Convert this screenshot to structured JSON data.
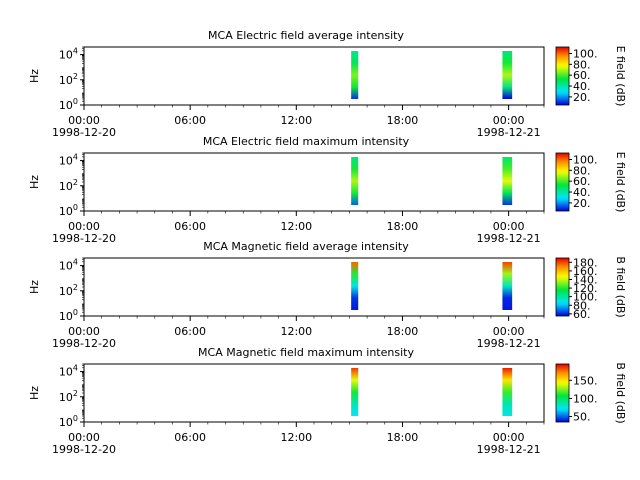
{
  "chart_data": [
    {
      "type": "heatmap",
      "title": "MCA  Electric field average intensity",
      "ylabel": "Hz",
      "y_scale": "log",
      "y_ticks": [
        {
          "base": "10",
          "exp": "0"
        },
        {
          "base": "10",
          "exp": "2"
        },
        {
          "base": "10",
          "exp": "4"
        }
      ],
      "ylim": [
        1,
        40000
      ],
      "xlim": [
        0,
        26
      ],
      "x_ticks": [
        {
          "hour": 0,
          "label": "00:00",
          "date": "1998-12-20"
        },
        {
          "hour": 6,
          "label": "06:00",
          "date": ""
        },
        {
          "hour": 12,
          "label": "12:00",
          "date": ""
        },
        {
          "hour": 18,
          "label": "18:00",
          "date": ""
        },
        {
          "hour": 24,
          "label": "00:00",
          "date": "1998-12-21"
        }
      ],
      "colorbar_label": "E field (dB)",
      "colorbar_ticks": [
        "20.",
        "40.",
        "60.",
        "80.",
        "100."
      ],
      "colorbar_range": [
        5,
        112
      ],
      "data_blocks": [
        {
          "x_start": 15.1,
          "x_end": 15.5,
          "profile": [
            10,
            55,
            65,
            50,
            42
          ]
        },
        {
          "x_start": 23.65,
          "x_end": 24.2,
          "profile": [
            5,
            45,
            70,
            55,
            45
          ]
        }
      ]
    },
    {
      "type": "heatmap",
      "title": "MCA  Electric field maximum intensity",
      "ylabel": "Hz",
      "y_scale": "log",
      "y_ticks": [
        {
          "base": "10",
          "exp": "0"
        },
        {
          "base": "10",
          "exp": "2"
        },
        {
          "base": "10",
          "exp": "4"
        }
      ],
      "ylim": [
        1,
        40000
      ],
      "xlim": [
        0,
        26
      ],
      "x_ticks": [
        {
          "hour": 0,
          "label": "00:00",
          "date": "1998-12-20"
        },
        {
          "hour": 6,
          "label": "06:00",
          "date": ""
        },
        {
          "hour": 12,
          "label": "12:00",
          "date": ""
        },
        {
          "hour": 18,
          "label": "18:00",
          "date": ""
        },
        {
          "hour": 24,
          "label": "00:00",
          "date": "1998-12-21"
        }
      ],
      "colorbar_label": "E field (dB)",
      "colorbar_ticks": [
        "20.",
        "40.",
        "60.",
        "80.",
        "100."
      ],
      "colorbar_range": [
        5,
        112
      ],
      "data_blocks": [
        {
          "x_start": 15.1,
          "x_end": 15.5,
          "profile": [
            15,
            55,
            70,
            55,
            45
          ]
        },
        {
          "x_start": 23.65,
          "x_end": 24.2,
          "profile": [
            10,
            50,
            75,
            60,
            48
          ]
        }
      ]
    },
    {
      "type": "heatmap",
      "title": "MCA  Magnetic field average intensity",
      "ylabel": "Hz",
      "y_scale": "log",
      "y_ticks": [
        {
          "base": "10",
          "exp": "0"
        },
        {
          "base": "10",
          "exp": "2"
        },
        {
          "base": "10",
          "exp": "4"
        }
      ],
      "ylim": [
        1,
        40000
      ],
      "xlim": [
        0,
        26
      ],
      "x_ticks": [
        {
          "hour": 0,
          "label": "00:00",
          "date": "1998-12-20"
        },
        {
          "hour": 6,
          "label": "06:00",
          "date": ""
        },
        {
          "hour": 12,
          "label": "12:00",
          "date": ""
        },
        {
          "hour": 18,
          "label": "18:00",
          "date": ""
        },
        {
          "hour": 24,
          "label": "00:00",
          "date": "1998-12-21"
        }
      ],
      "colorbar_label": "B field (dB)",
      "colorbar_ticks": [
        "60.",
        "80.",
        "100.",
        "120.",
        "140.",
        "160.",
        "180."
      ],
      "colorbar_range": [
        55,
        190
      ],
      "data_blocks": [
        {
          "x_start": 15.1,
          "x_end": 15.5,
          "profile": [
            58,
            62,
            90,
            120,
            175
          ]
        },
        {
          "x_start": 23.65,
          "x_end": 24.2,
          "profile": [
            58,
            60,
            95,
            135,
            180
          ]
        }
      ]
    },
    {
      "type": "heatmap",
      "title": "MCA  Magnetic field maximum intensity",
      "ylabel": "Hz",
      "y_scale": "log",
      "y_ticks": [
        {
          "base": "10",
          "exp": "0"
        },
        {
          "base": "10",
          "exp": "2"
        },
        {
          "base": "10",
          "exp": "4"
        }
      ],
      "ylim": [
        1,
        40000
      ],
      "xlim": [
        0,
        26
      ],
      "x_ticks": [
        {
          "hour": 0,
          "label": "00:00",
          "date": "1998-12-20"
        },
        {
          "hour": 6,
          "label": "06:00",
          "date": ""
        },
        {
          "hour": 12,
          "label": "12:00",
          "date": ""
        },
        {
          "hour": 18,
          "label": "18:00",
          "date": ""
        },
        {
          "hour": 24,
          "label": "00:00",
          "date": "1998-12-21"
        }
      ],
      "colorbar_label": "B field (dB)",
      "colorbar_ticks": [
        "50.",
        "100.",
        "150."
      ],
      "colorbar_range": [
        35,
        195
      ],
      "data_blocks": [
        {
          "x_start": 15.1,
          "x_end": 15.5,
          "profile": [
            70,
            85,
            110,
            140,
            185
          ]
        },
        {
          "x_start": 23.65,
          "x_end": 24.2,
          "profile": [
            75,
            85,
            115,
            150,
            190
          ]
        }
      ]
    }
  ]
}
